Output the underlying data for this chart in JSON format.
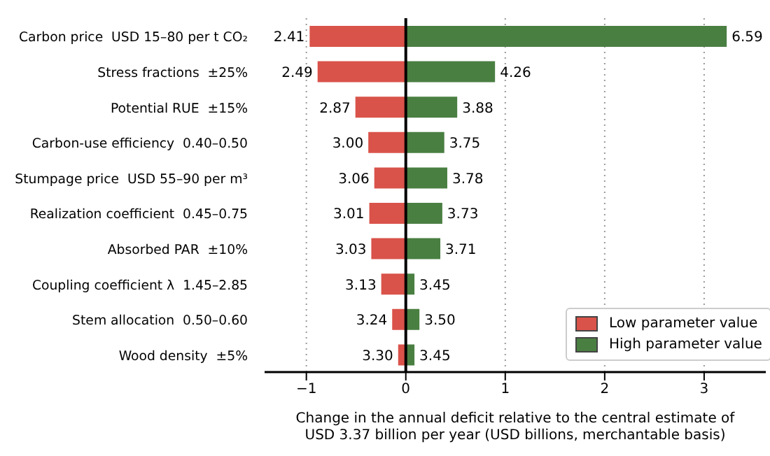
{
  "chart_data": {
    "type": "bar",
    "orientation": "horizontal",
    "stacked": true,
    "categories": [
      "Carbon price  USD 15–80 per t CO₂",
      "Stress fractions  ±25%",
      "Potential RUE  ±15%",
      "Carbon-use efficiency  0.40–0.50",
      "Stumpage price  USD 55–90 per m³",
      "Realization coefficient  0.45–0.75",
      "Absorbed PAR  ±10%",
      "Coupling coefficient λ  1.45–2.85",
      "Stem allocation  0.50–0.60",
      "Wood density  ±5%"
    ],
    "series": [
      {
        "name": "Low parameter value",
        "color": "#d9534a",
        "values": [
          -0.96,
          -0.88,
          -0.5,
          -0.37,
          -0.31,
          -0.36,
          -0.34,
          -0.24,
          -0.13,
          -0.07
        ]
      },
      {
        "name": "High parameter value",
        "color": "#4a7f42",
        "values": [
          3.22,
          0.89,
          0.51,
          0.38,
          0.41,
          0.36,
          0.34,
          0.08,
          0.13,
          0.08
        ]
      }
    ],
    "annotations": [
      {
        "text": "2.41",
        "x": -0.96,
        "y": "Carbon price  USD 15–80 per t CO₂"
      },
      {
        "text": "6.59",
        "x": 3.22,
        "y": "Carbon price  USD 15–80 per t CO₂"
      },
      {
        "text": "2.49",
        "x": -0.88,
        "y": "Stress fractions  ±25%"
      },
      {
        "text": "4.26",
        "x": 0.89,
        "y": "Stress fractions  ±25%"
      },
      {
        "text": "2.87",
        "x": -0.5,
        "y": "Potential RUE  ±15%"
      },
      {
        "text": "3.88",
        "x": 0.51,
        "y": "Potential RUE  ±15%"
      },
      {
        "text": "3.00",
        "x": -0.37,
        "y": "Carbon-use efficiency  0.40–0.50"
      },
      {
        "text": "3.75",
        "x": 0.38,
        "y": "Carbon-use efficiency  0.40–0.50"
      },
      {
        "text": "3.06",
        "x": -0.31,
        "y": "Stumpage price  USD 55–90 per m³"
      },
      {
        "text": "3.78",
        "x": 0.41,
        "y": "Stumpage price  USD 55–90 per m³"
      },
      {
        "text": "3.01",
        "x": -0.36,
        "y": "Realization coefficient  0.45–0.75"
      },
      {
        "text": "3.73",
        "x": 0.36,
        "y": "Realization coefficient  0.45–0.75"
      },
      {
        "text": "3.03",
        "x": -0.34,
        "y": "Absorbed PAR  ±10%"
      },
      {
        "text": "3.71",
        "x": 0.34,
        "y": "Absorbed PAR  ±10%"
      },
      {
        "text": "3.13",
        "x": -0.24,
        "y": "Coupling coefficient λ  1.45–2.85"
      },
      {
        "text": "3.45",
        "x": 0.08,
        "y": "Coupling coefficient λ  1.45–2.85"
      },
      {
        "text": "3.24",
        "x": -0.13,
        "y": "Stem allocation  0.50–0.60"
      },
      {
        "text": "3.50",
        "x": 0.13,
        "y": "Stem allocation  0.50–0.60"
      },
      {
        "text": "3.30",
        "x": -0.07,
        "y": "Wood density  ±5%"
      },
      {
        "text": "3.45",
        "x": 0.08,
        "y": "Wood density  ±5%"
      }
    ],
    "xlabel": "Change in the annual deficit relative to the central estimate of\nUSD 3.37 billion per year (USD billions, merchantable basis)",
    "xlim": [
      -1.42,
      3.62
    ],
    "xticks": [
      {
        "value": -1,
        "label": "−1"
      },
      0,
      1,
      2,
      3
    ],
    "grid": "x",
    "legend": "bottom right",
    "ref_lines": [
      {
        "axis": "x",
        "value": 0,
        "color": "#000000"
      }
    ]
  }
}
